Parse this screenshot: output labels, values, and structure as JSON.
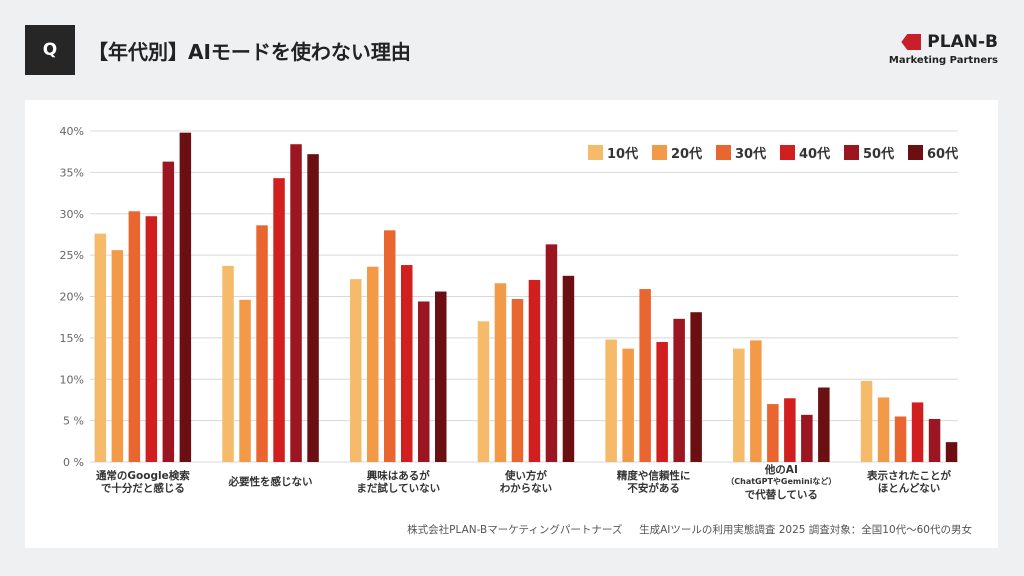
{
  "header": {
    "q_label": "Q",
    "title": "【年代別】AIモードを使わない理由",
    "logo_name": "PLAN-B",
    "logo_sub": "Marketing Partners"
  },
  "footer": {
    "company": "株式会社PLAN-Bマーケティングパートナーズ",
    "source": "生成AIツールの利用実態調査 2025 調査対象：全国10代〜60代の男女"
  },
  "chart_data": {
    "type": "bar",
    "categories": [
      [
        "通常のGoogle検索",
        "で十分だと感じる"
      ],
      [
        "必要性を感じない"
      ],
      [
        "興味はあるが",
        "まだ試していない"
      ],
      [
        "使い方が",
        "わからない"
      ],
      [
        "精度や信頼性に",
        "不安がある"
      ],
      [
        "他のAI",
        "（ChatGPTやGeminiなど）",
        "で代替している"
      ],
      [
        "表示されたことが",
        "ほとんどない"
      ]
    ],
    "series": [
      {
        "name": "10代",
        "color": "#F6BA6B",
        "values": [
          27.6,
          23.7,
          22.1,
          17.0,
          14.8,
          13.7,
          9.8
        ]
      },
      {
        "name": "20代",
        "color": "#F29A48",
        "values": [
          25.6,
          19.6,
          23.6,
          21.6,
          13.7,
          14.7,
          7.8
        ]
      },
      {
        "name": "30代",
        "color": "#E96630",
        "values": [
          30.3,
          28.6,
          28.0,
          19.7,
          20.9,
          7.0,
          5.5
        ]
      },
      {
        "name": "40代",
        "color": "#D11F1F",
        "values": [
          29.7,
          34.3,
          23.8,
          22.0,
          14.5,
          7.7,
          7.2
        ]
      },
      {
        "name": "50代",
        "color": "#9B1620",
        "values": [
          36.3,
          38.4,
          19.4,
          26.3,
          17.3,
          5.7,
          5.2
        ]
      },
      {
        "name": "60代",
        "color": "#6C0F12",
        "values": [
          39.8,
          37.2,
          20.6,
          22.5,
          18.1,
          9.0,
          2.4
        ]
      }
    ],
    "yticks": [
      "0 %",
      "5 %",
      "10%",
      "15%",
      "20%",
      "25%",
      "30%",
      "35%",
      "40%"
    ],
    "ylim": [
      0,
      40
    ],
    "grid": true,
    "legend": "top-right"
  }
}
